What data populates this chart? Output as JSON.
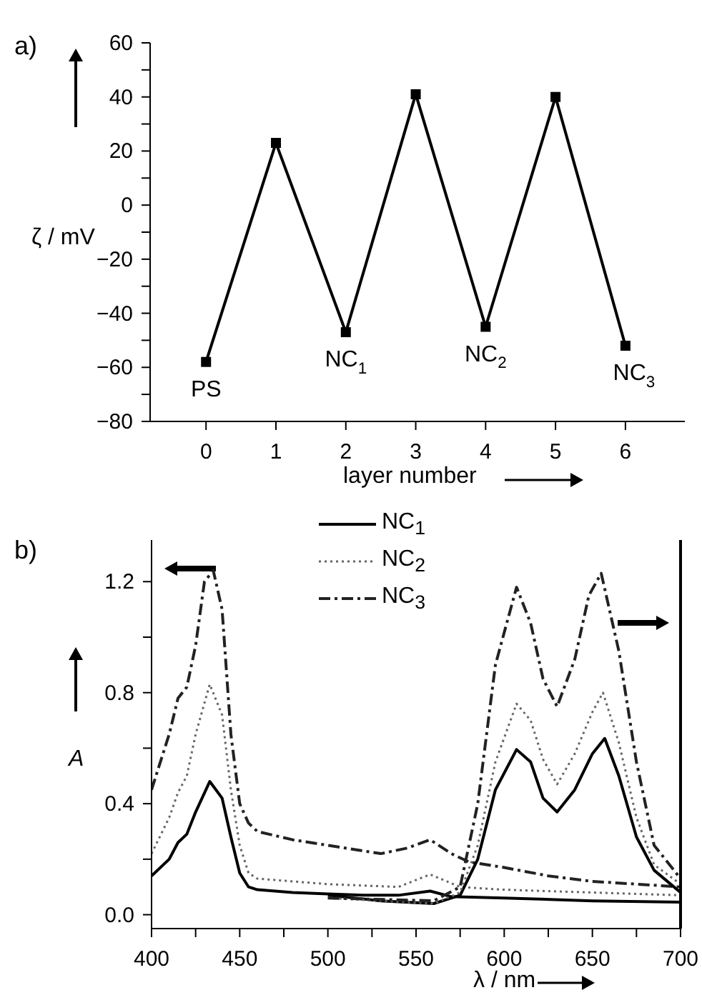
{
  "chart_data": [
    {
      "type": "line",
      "title": "a)",
      "xlabel": "layer number",
      "ylabel": "ζ / mV",
      "x": [
        0,
        1,
        2,
        3,
        4,
        5,
        6
      ],
      "series": [
        {
          "color": "#000000",
          "values": [
            -58,
            23,
            -47,
            41,
            -45,
            40,
            -52
          ]
        }
      ],
      "xlim": [
        -0.8,
        6.85
      ],
      "xticks": [
        0,
        1,
        2,
        3,
        4,
        5,
        6
      ],
      "ylim": [
        -80,
        60
      ],
      "yticks": [
        {
          "value": -80,
          "label": "−80"
        },
        {
          "value": -70,
          "label": null
        },
        {
          "value": -60,
          "label": "−60"
        },
        {
          "value": -50,
          "label": null
        },
        {
          "value": -40,
          "label": "−40"
        },
        {
          "value": -30,
          "label": null
        },
        {
          "value": -20,
          "label": "−20"
        },
        {
          "value": -10,
          "label": null
        },
        0,
        {
          "value": 10,
          "label": null
        },
        20,
        {
          "value": 30,
          "label": null
        },
        40,
        {
          "value": 50,
          "label": null
        },
        60
      ],
      "marker": "square",
      "line_style": "solid",
      "grid": false,
      "legend": false,
      "annotations": [
        {
          "text": "PS",
          "x": 0,
          "y": -58
        },
        {
          "text": "NC$_{1}$",
          "x": 2,
          "y": -47
        },
        {
          "text": "NC$_{2}$",
          "x": 4,
          "y": -45
        },
        {
          "text": "NC$_{3}$",
          "x": 6,
          "y": -52
        }
      ]
    },
    {
      "type": "line",
      "title": "b)",
      "xlabel": "λ / nm",
      "ylabel": "A",
      "series": [
        {
          "name": "NC$_{1}$",
          "color": "#000000",
          "line_style": "solid",
          "x": [
            400,
            410,
            415,
            420,
            425,
            433,
            440,
            445,
            450,
            455,
            460,
            480,
            500,
            520,
            540,
            558,
            570,
            600,
            650,
            700
          ],
          "values": [
            0.14,
            0.2,
            0.26,
            0.29,
            0.37,
            0.48,
            0.42,
            0.28,
            0.15,
            0.1,
            0.09,
            0.08,
            0.075,
            0.07,
            0.07,
            0.085,
            0.065,
            0.06,
            0.05,
            0.045
          ]
        },
        {
          "name": "NC$_{2}$",
          "color": "#666666",
          "line_style": "dotted",
          "x": [
            400,
            410,
            415,
            420,
            425,
            433,
            440,
            445,
            450,
            455,
            460,
            500,
            540,
            558,
            575,
            600,
            650,
            700
          ],
          "values": [
            0.22,
            0.35,
            0.44,
            0.5,
            0.65,
            0.83,
            0.72,
            0.45,
            0.25,
            0.15,
            0.13,
            0.11,
            0.1,
            0.145,
            0.1,
            0.09,
            0.08,
            0.07
          ]
        },
        {
          "name": "NC$_{3}$",
          "color": "#222222",
          "line_style": "dashed",
          "x": [
            400,
            410,
            415,
            420,
            425,
            430,
            435,
            440,
            445,
            450,
            455,
            460,
            480,
            500,
            530,
            545,
            558,
            570,
            580,
            600,
            625,
            650,
            700
          ],
          "values": [
            0.45,
            0.65,
            0.78,
            0.82,
            0.97,
            1.2,
            1.24,
            1.1,
            0.65,
            0.4,
            0.33,
            0.3,
            0.27,
            0.25,
            0.22,
            0.24,
            0.27,
            0.22,
            0.19,
            0.17,
            0.14,
            0.12,
            0.1
          ]
        },
        {
          "color": "#000000",
          "line_style": "solid",
          "x": [
            500,
            530,
            560,
            575,
            585,
            595,
            607,
            615,
            622,
            630,
            640,
            650,
            657,
            665,
            675,
            685,
            700
          ],
          "values": [
            0.07,
            0.05,
            0.04,
            0.07,
            0.2,
            0.45,
            0.595,
            0.55,
            0.42,
            0.37,
            0.45,
            0.58,
            0.635,
            0.5,
            0.28,
            0.16,
            0.08
          ]
        },
        {
          "color": "#666666",
          "line_style": "dotted",
          "x": [
            500,
            560,
            575,
            585,
            595,
            607,
            615,
            622,
            630,
            640,
            650,
            656,
            665,
            675,
            685,
            700
          ],
          "values": [
            0.06,
            0.04,
            0.08,
            0.25,
            0.55,
            0.76,
            0.7,
            0.56,
            0.47,
            0.58,
            0.73,
            0.8,
            0.62,
            0.35,
            0.18,
            0.11
          ]
        },
        {
          "color": "#222222",
          "line_style": "dashed",
          "x": [
            500,
            560,
            575,
            585,
            595,
            607,
            615,
            622,
            630,
            640,
            648,
            655,
            665,
            675,
            685,
            700
          ],
          "values": [
            0.06,
            0.05,
            0.1,
            0.4,
            0.9,
            1.18,
            1.05,
            0.85,
            0.75,
            0.92,
            1.15,
            1.23,
            0.95,
            0.55,
            0.25,
            0.13
          ]
        }
      ],
      "xlim": [
        400,
        700
      ],
      "xticks": [
        400,
        {
          "value": 425,
          "label": null
        },
        450,
        {
          "value": 475,
          "label": null
        },
        500,
        {
          "value": 525,
          "label": null
        },
        550,
        {
          "value": 575,
          "label": null
        },
        600,
        {
          "value": 625,
          "label": null
        },
        650,
        {
          "value": 675,
          "label": null
        },
        700
      ],
      "ylim": [
        -0.05,
        1.35
      ],
      "yticks": [
        {
          "value": 0,
          "label": "0.0"
        },
        {
          "value": 0.2,
          "label": null
        },
        0.4,
        {
          "value": 0.6,
          "label": null
        },
        0.8,
        {
          "value": 1.0,
          "label": null
        },
        1.2
      ],
      "marker": "none",
      "grid": false,
      "legend": "top"
    }
  ]
}
